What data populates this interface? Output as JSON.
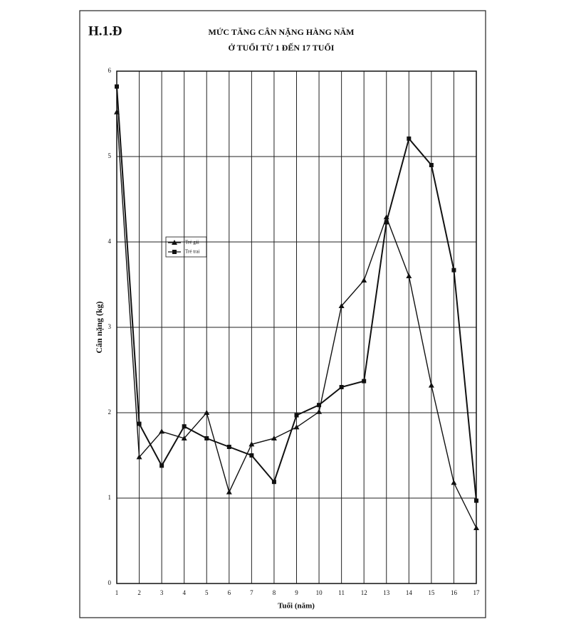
{
  "chart_data": {
    "type": "line",
    "figure_label": "H.1.Đ",
    "title": "MỨC TĂNG CÂN NẶNG HÀNG NĂM",
    "subtitle": "Ở TUỔI TỪ 1 ĐẾN 17 TUỔI",
    "x_label": "Tuổi (năm)",
    "y_label": "Cân nặng (kg)",
    "x": [
      1,
      2,
      3,
      4,
      5,
      6,
      7,
      8,
      9,
      10,
      11,
      12,
      13,
      14,
      15,
      16,
      17
    ],
    "series": [
      {
        "name": "Trẻ gái",
        "color": "#111111",
        "marker": "triangle",
        "values": [
          5.52,
          1.48,
          1.78,
          1.7,
          2.0,
          1.07,
          1.63,
          1.7,
          1.83,
          2.01,
          3.25,
          3.55,
          4.29,
          3.6,
          2.32,
          1.18,
          0.65
        ]
      },
      {
        "name": "Trẻ trai",
        "color": "#111111",
        "marker": "square",
        "values": [
          5.82,
          1.87,
          1.38,
          1.84,
          1.7,
          1.6,
          1.5,
          1.19,
          1.97,
          2.09,
          2.3,
          2.37,
          4.23,
          5.21,
          4.9,
          3.67,
          0.97
        ]
      }
    ],
    "xlim": [
      1,
      17
    ],
    "xticks": [
      1,
      2,
      3,
      4,
      5,
      6,
      7,
      8,
      9,
      10,
      11,
      12,
      13,
      14,
      15,
      16,
      17
    ],
    "ylim": [
      0,
      6
    ],
    "yticks": [
      0,
      1,
      2,
      3,
      4,
      5,
      6
    ],
    "grid": true
  }
}
